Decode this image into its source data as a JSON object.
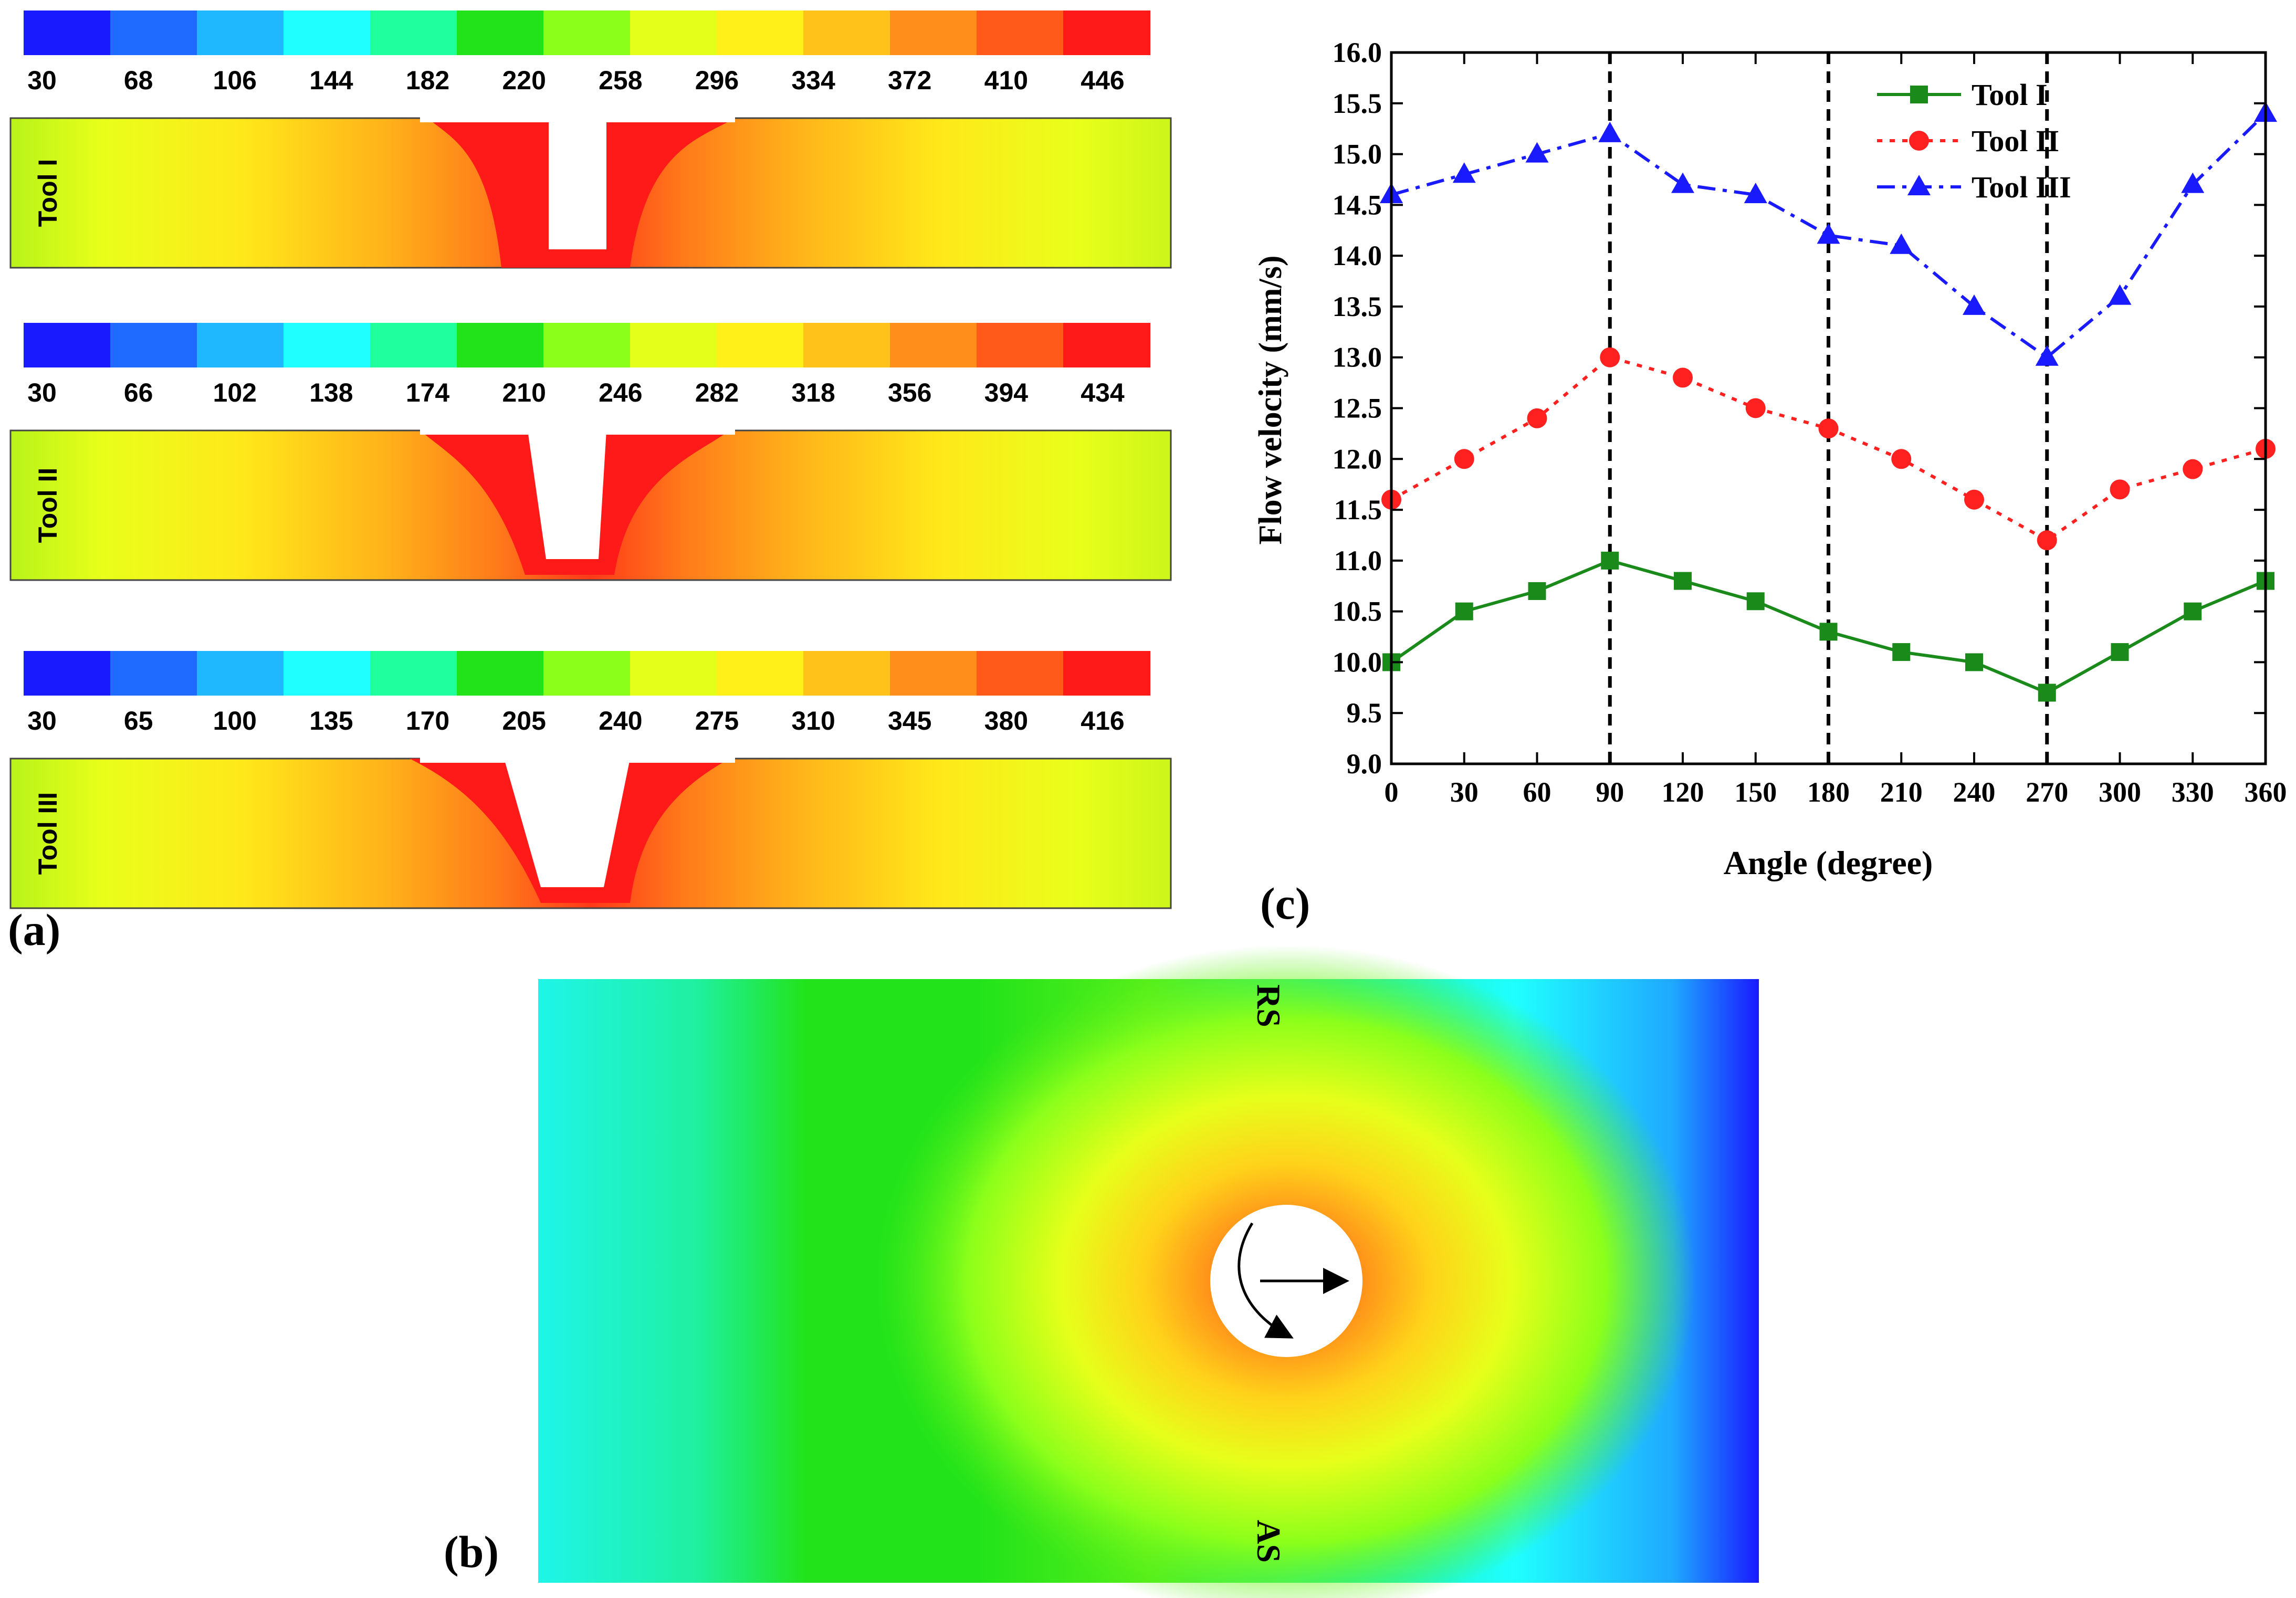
{
  "panel_a": {
    "label": "(a)",
    "tools": [
      {
        "name": "Tool I",
        "ticks": [
          "30",
          "68",
          "106",
          "144",
          "182",
          "220",
          "258",
          "296",
          "334",
          "372",
          "410",
          "446"
        ],
        "shape": "straight"
      },
      {
        "name": "Tool II",
        "ticks": [
          "30",
          "66",
          "102",
          "138",
          "174",
          "210",
          "246",
          "282",
          "318",
          "356",
          "394",
          "434"
        ],
        "shape": "taper"
      },
      {
        "name": "Tool III",
        "ticks": [
          "30",
          "65",
          "100",
          "135",
          "170",
          "205",
          "240",
          "275",
          "310",
          "345",
          "380",
          "416"
        ],
        "shape": "wide-taper"
      }
    ],
    "colors": [
      "#1a1aff",
      "#1f6bff",
      "#1fb8ff",
      "#1fffff",
      "#1fff9e",
      "#22e31a",
      "#8bff1a",
      "#e4ff1a",
      "#fff01a",
      "#ffc21a",
      "#ff8f1a",
      "#ff5a1a",
      "#ff1a1a"
    ]
  },
  "panel_b": {
    "label": "(b)",
    "rs": "RS",
    "as": "AS"
  },
  "chart_data": {
    "type": "line",
    "panel_label": "(c)",
    "xlabel": "Angle (degree)",
    "ylabel": "Flow velocity (mm/s)",
    "xlim": [
      0,
      360
    ],
    "ylim": [
      9.0,
      16.0
    ],
    "xticks": [
      0,
      30,
      60,
      90,
      120,
      150,
      180,
      210,
      240,
      270,
      300,
      330,
      360
    ],
    "yticks": [
      9.0,
      9.5,
      10.0,
      10.5,
      11.0,
      11.5,
      12.0,
      12.5,
      13.0,
      13.5,
      14.0,
      14.5,
      15.0,
      15.5,
      16.0
    ],
    "vlines": [
      90,
      180,
      270
    ],
    "legend_position": "top-right",
    "x": [
      0,
      30,
      60,
      90,
      120,
      150,
      180,
      210,
      240,
      270,
      300,
      330,
      360
    ],
    "series": [
      {
        "name": "Tool I",
        "color": "#1a8a1a",
        "marker": "square",
        "dash": "solid",
        "values": [
          10.0,
          10.5,
          10.7,
          11.0,
          10.8,
          10.6,
          10.3,
          10.1,
          10.0,
          9.7,
          10.1,
          10.5,
          10.8
        ]
      },
      {
        "name": "Tool II",
        "color": "#ff2020",
        "marker": "circle",
        "dash": "dot",
        "values": [
          11.6,
          12.0,
          12.4,
          13.0,
          12.8,
          12.5,
          12.3,
          12.0,
          11.6,
          11.2,
          11.7,
          11.9,
          12.1
        ]
      },
      {
        "name": "Tool III",
        "color": "#1a1aff",
        "marker": "triangle",
        "dash": "dash-dot",
        "values": [
          14.6,
          14.8,
          15.0,
          15.2,
          14.7,
          14.6,
          14.2,
          14.1,
          13.5,
          13.0,
          13.6,
          14.7,
          15.4
        ]
      }
    ]
  }
}
